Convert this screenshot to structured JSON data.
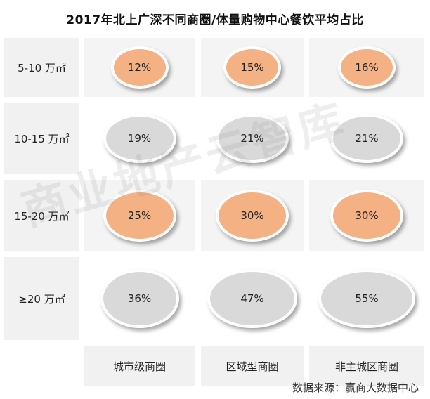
{
  "chart_data": {
    "type": "table",
    "title": "2017年北上广深不同商圈/体量购物中心餐饮平均占比",
    "rows": [
      "5-10 万㎡",
      "10-15 万㎡",
      "15-20 万㎡",
      "≥20 万㎡"
    ],
    "columns": [
      "城市级商圈",
      "区域型商圈",
      "非主城区商圈"
    ],
    "values": [
      [
        "12%",
        "15%",
        "16%"
      ],
      [
        "19%",
        "21%",
        "21%"
      ],
      [
        "25%",
        "30%",
        "30%"
      ],
      [
        "36%",
        "47%",
        "55%"
      ]
    ],
    "numeric_values": [
      [
        12,
        15,
        16
      ],
      [
        19,
        21,
        21
      ],
      [
        25,
        30,
        30
      ],
      [
        36,
        47,
        55
      ]
    ],
    "highlight": [
      [
        true,
        true,
        true
      ],
      [
        false,
        false,
        false
      ],
      [
        true,
        true,
        true
      ],
      [
        false,
        false,
        false
      ]
    ],
    "colors": {
      "highlight": "#f4b183",
      "normal": "#d9d9d9",
      "cell_background": "#f1f1f1"
    }
  },
  "watermark": "商业地产云智库",
  "source": "数据来源：赢商大数据中心"
}
